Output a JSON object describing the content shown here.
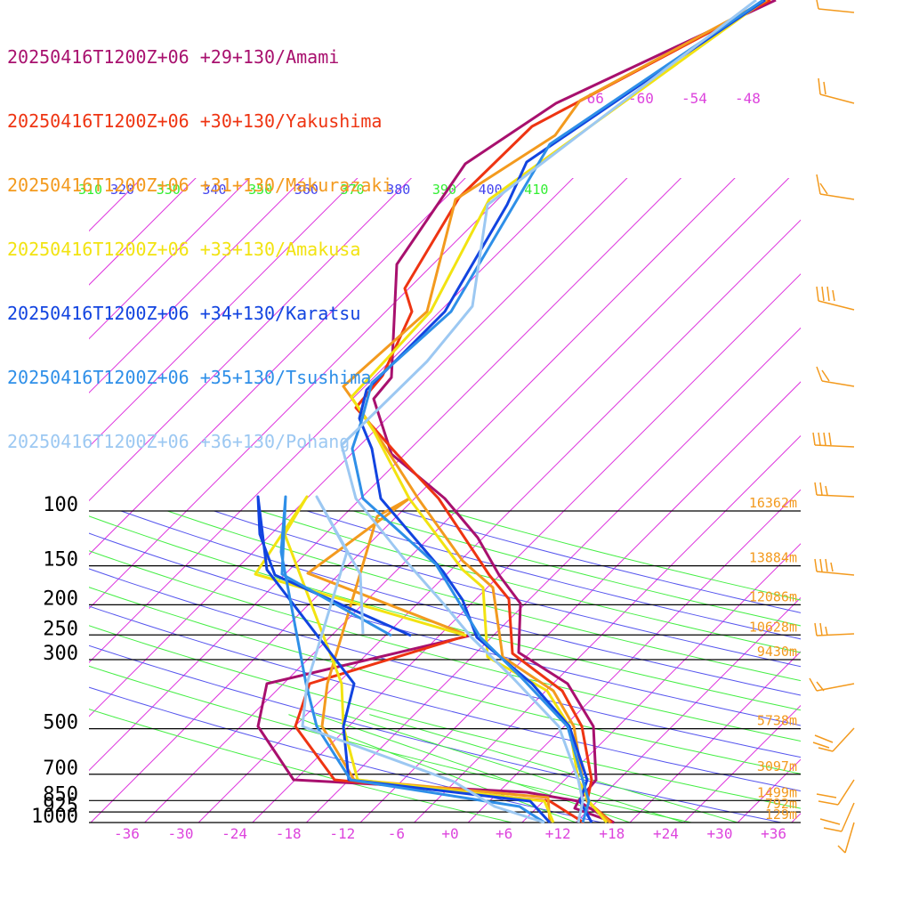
{
  "chart_data": {
    "type": "line",
    "xlabel": "",
    "ylabel": "",
    "x_ticks": [
      -36,
      -30,
      -24,
      -18,
      -12,
      -6,
      0,
      6,
      12,
      18,
      24,
      30,
      36
    ],
    "x_tick_labels": [
      "-36",
      "-30",
      "-24",
      "-18",
      "-12",
      "-6",
      "+0",
      "+6",
      "+12",
      "+18",
      "+24",
      "+30",
      "+36"
    ],
    "xlim": [
      -40,
      40
    ],
    "pressure_levels": [
      {
        "p": 100,
        "label": "100",
        "height": "16362m"
      },
      {
        "p": 150,
        "label": "150",
        "height": "13884m"
      },
      {
        "p": 200,
        "label": "200",
        "height": "12086m"
      },
      {
        "p": 250,
        "label": "250",
        "height": "10628m"
      },
      {
        "p": 300,
        "label": "300",
        "height": "9430m"
      },
      {
        "p": 500,
        "label": "500",
        "height": "5738m"
      },
      {
        "p": 700,
        "label": "700",
        "height": "3097m"
      },
      {
        "p": 850,
        "label": "850",
        "height": "1499m"
      },
      {
        "p": 925,
        "label": "925",
        "height": "792m"
      },
      {
        "p": 1000,
        "label": "1000",
        "height": "129m"
      }
    ],
    "isotherm_labels": [
      "-66",
      "-60",
      "-54",
      "-48"
    ],
    "theta_labels": [
      "310",
      "320",
      "330",
      "340",
      "350",
      "360",
      "370",
      "380",
      "390",
      "400",
      "410"
    ],
    "series": [
      {
        "name": "20250416T1200Z+06 +29+130/Amami",
        "color": "#a8106e"
      },
      {
        "name": "20250416T1200Z+06 +30+130/Yakushima",
        "color": "#ee3412"
      },
      {
        "name": "20250416T1200Z+06 +31+130/Makurazaki",
        "color": "#f39a1e"
      },
      {
        "name": "20250416T1200Z+06 +33+130/Amakusa",
        "color": "#f2e311"
      },
      {
        "name": "20250416T1200Z+06 +34+130/Karatsu",
        "color": "#1244e0"
      },
      {
        "name": "20250416T1200Z+06 +35+130/Tsushima",
        "color": "#2e8fe8"
      },
      {
        "name": "20250416T1200Z+06 +36+130/Pohang",
        "color": "#9cc8f2"
      }
    ],
    "grid": true
  }
}
